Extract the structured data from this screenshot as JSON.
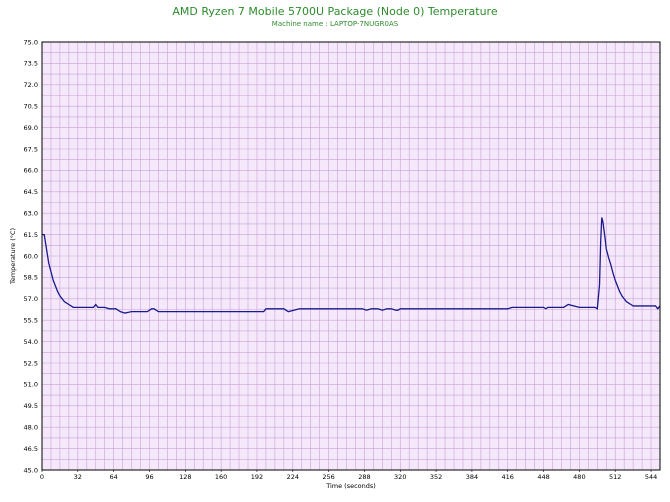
{
  "chart_data": {
    "type": "line",
    "title": "AMD Ryzen 7 Mobile 5700U Package (Node 0) Temperature",
    "subtitle": "Machine name : LAPTOP-7NUGR0AS",
    "xlabel": "Time (seconds)",
    "ylabel": "Temperature (°C)",
    "xlim": [
      0,
      552
    ],
    "ylim": [
      45.0,
      75.0
    ],
    "x_ticks": [
      0,
      32,
      64,
      96,
      128,
      160,
      192,
      224,
      256,
      288,
      320,
      352,
      384,
      416,
      448,
      480,
      512,
      544
    ],
    "y_ticks": [
      "45.0",
      "46.5",
      "48.0",
      "49.5",
      "51.0",
      "52.5",
      "54.0",
      "55.5",
      "57.0",
      "58.5",
      "60.0",
      "61.5",
      "63.0",
      "64.5",
      "66.0",
      "67.5",
      "69.0",
      "70.5",
      "72.0",
      "73.5",
      "75.0"
    ],
    "grid": true,
    "line_color": "#1a1a8c",
    "plot_background": "#f5e8fb",
    "grid_color": "#c9a3d6",
    "series": [
      {
        "name": "",
        "x": [
          0,
          2,
          3,
          4,
          5,
          6,
          8,
          10,
          12,
          14,
          16,
          18,
          20,
          22,
          24,
          26,
          28,
          30,
          32,
          34,
          36,
          40,
          46,
          48,
          50,
          56,
          60,
          66,
          70,
          74,
          80,
          88,
          94,
          98,
          100,
          104,
          110,
          120,
          140,
          160,
          180,
          198,
          200,
          216,
          220,
          230,
          240,
          260,
          270,
          280,
          286,
          290,
          294,
          300,
          304,
          308,
          312,
          316,
          318,
          320,
          324,
          330,
          340,
          360,
          380,
          400,
          416,
          420,
          440,
          448,
          450,
          452,
          454,
          456,
          460,
          466,
          470,
          480,
          486,
          490,
          494,
          496,
          498,
          499,
          500,
          501,
          502,
          503,
          504,
          506,
          508,
          510,
          512,
          514,
          516,
          518,
          520,
          522,
          524,
          526,
          528,
          530,
          532,
          536,
          540,
          544,
          548,
          550,
          552
        ],
        "y": [
          61.5,
          61.5,
          61.0,
          60.5,
          60.0,
          59.5,
          58.9,
          58.3,
          57.9,
          57.5,
          57.2,
          57.0,
          56.8,
          56.7,
          56.6,
          56.5,
          56.4,
          56.4,
          56.4,
          56.4,
          56.4,
          56.4,
          56.4,
          56.6,
          56.4,
          56.4,
          56.3,
          56.3,
          56.1,
          56.0,
          56.1,
          56.1,
          56.1,
          56.3,
          56.3,
          56.1,
          56.1,
          56.1,
          56.1,
          56.1,
          56.1,
          56.1,
          56.3,
          56.3,
          56.1,
          56.3,
          56.3,
          56.3,
          56.3,
          56.3,
          56.3,
          56.2,
          56.3,
          56.3,
          56.2,
          56.3,
          56.3,
          56.2,
          56.2,
          56.3,
          56.3,
          56.3,
          56.3,
          56.3,
          56.3,
          56.3,
          56.3,
          56.4,
          56.4,
          56.4,
          56.3,
          56.4,
          56.4,
          56.4,
          56.4,
          56.4,
          56.6,
          56.4,
          56.4,
          56.4,
          56.4,
          56.3,
          58.0,
          61.0,
          62.7,
          62.4,
          61.8,
          61.2,
          60.5,
          59.9,
          59.4,
          58.8,
          58.3,
          57.9,
          57.5,
          57.2,
          57.0,
          56.8,
          56.7,
          56.6,
          56.5,
          56.5,
          56.5,
          56.5,
          56.5,
          56.5,
          56.5,
          56.3,
          56.5
        ]
      }
    ]
  }
}
